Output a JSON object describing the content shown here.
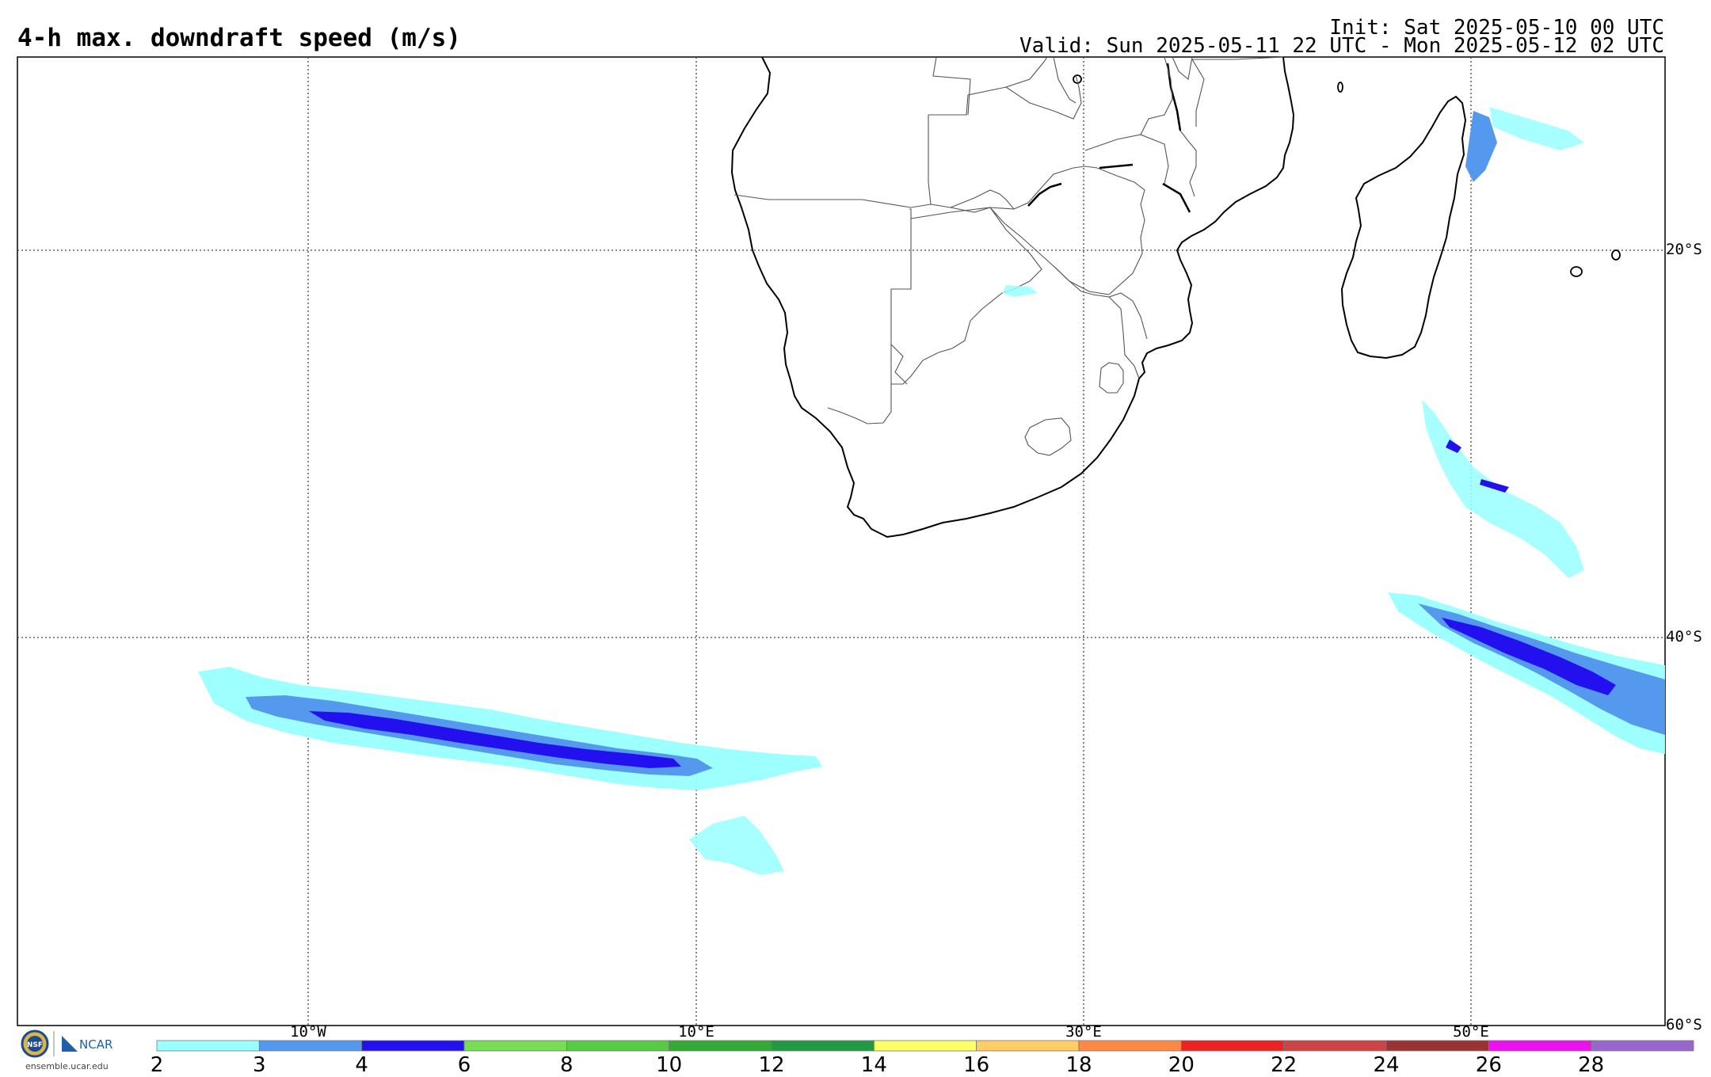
{
  "title": "4-h max. downdraft speed (m/s)",
  "init_text": "Init: Sat 2025-05-10 00 UTC",
  "valid_text": "Valid: Sun 2025-05-11 22 UTC - Mon 2025-05-12 02 UTC",
  "lat_labels": [
    "20°S",
    "40°S",
    "60°S"
  ],
  "lon_labels": [
    "10°W",
    "10°E",
    "30°E",
    "50°E"
  ],
  "colorbar": {
    "ticks": [
      "2",
      "3",
      "4",
      "6",
      "8",
      "10",
      "12",
      "14",
      "16",
      "18",
      "20",
      "22",
      "24",
      "26",
      "28"
    ],
    "colors": [
      "#99ffff",
      "#5599ee",
      "#2211ee",
      "#77dd55",
      "#55cc44",
      "#33aa33",
      "#229944",
      "#ffff66",
      "#ffcc66",
      "#ff8844",
      "#ee2222",
      "#cc4444",
      "#993333",
      "#ee11ee",
      "#9966cc"
    ]
  },
  "logo": {
    "org": "NCAR",
    "badge": "NSF",
    "url": "ensemble.ucar.edu"
  }
}
